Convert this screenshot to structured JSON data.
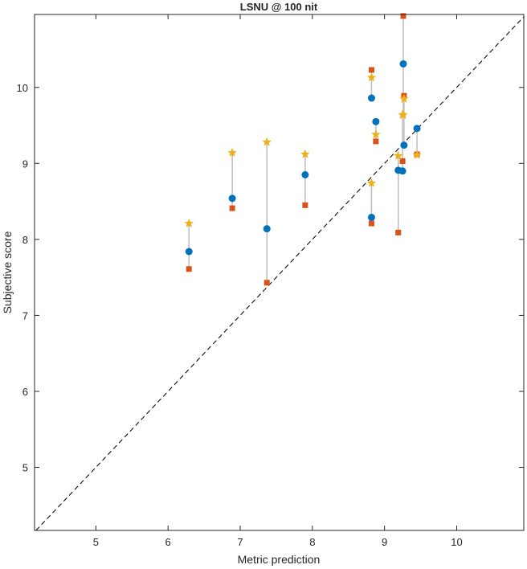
{
  "chart_data": {
    "type": "scatter",
    "title": "LSNU @ 100 nit",
    "xlabel": "Metric prediction",
    "ylabel": "Subjective score",
    "xlim": [
      4.15,
      10.93
    ],
    "ylim": [
      4.17,
      10.96
    ],
    "xticks": [
      5,
      6,
      7,
      8,
      9,
      10
    ],
    "yticks": [
      5,
      6,
      7,
      8,
      9,
      10
    ],
    "grid": false,
    "reference_line": "y = x (dashed)",
    "colors": {
      "circle": "#0072BD",
      "square": "#D95319",
      "star": "#EDB120",
      "connector": "#BDBDBD",
      "diagonal": "#000000"
    },
    "groups": [
      {
        "x": 6.29,
        "circle": 7.84,
        "square": 7.61,
        "star": 8.21
      },
      {
        "x": 6.89,
        "circle": 8.54,
        "square": 8.41,
        "star": 9.14
      },
      {
        "x": 7.37,
        "circle": 8.14,
        "square": 7.43,
        "star": 9.28
      },
      {
        "x": 7.9,
        "circle": 8.85,
        "square": 8.45,
        "star": 9.12
      },
      {
        "x": 8.82,
        "circle": 9.86,
        "square": 10.23,
        "star": 10.13
      },
      {
        "x": 8.88,
        "circle": 9.55,
        "square": 9.29,
        "star": 9.38
      },
      {
        "x": 8.82,
        "circle": 8.29,
        "square": 8.21,
        "star": 8.74
      },
      {
        "x": 9.26,
        "circle": 10.31,
        "square": 10.94,
        "star": 9.64
      },
      {
        "x": 9.27,
        "circle": 9.24,
        "square": 9.89,
        "star": 9.85
      },
      {
        "x": 9.25,
        "circle": 8.9,
        "square": 9.03,
        "star": 9.64
      },
      {
        "x": 9.19,
        "circle": 8.91,
        "square": 8.09,
        "star": 9.1
      },
      {
        "x": 9.45,
        "circle": 9.46,
        "square": 9.12,
        "star": 9.11
      }
    ]
  }
}
